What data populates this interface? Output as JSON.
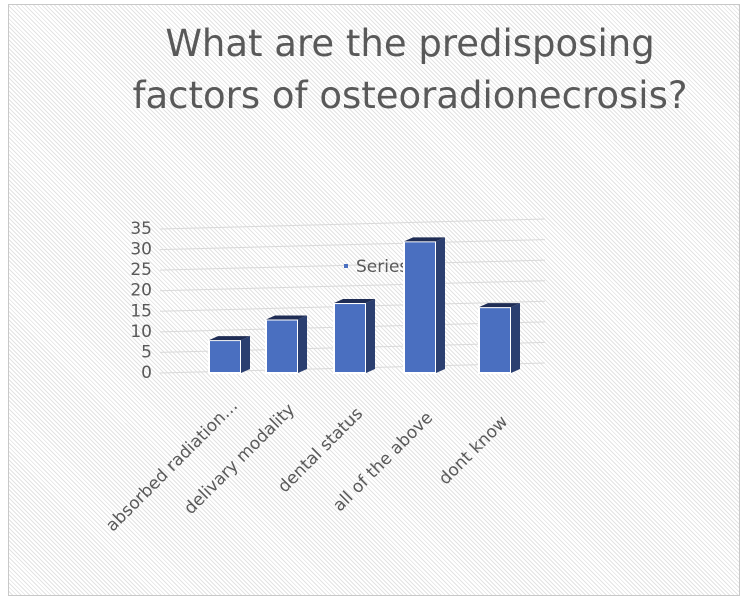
{
  "chart_data": {
    "type": "bar3d",
    "title": "What are the predisposing factors of osteoradionecrosis?",
    "categories": [
      "absorbed radiation…",
      "delivary modality",
      "dental status",
      "all of the above",
      "dont know"
    ],
    "series": [
      {
        "name": "Series1",
        "color": "#4a6fc0",
        "values": [
          8,
          13,
          17,
          32,
          16
        ]
      }
    ],
    "ylim": [
      0,
      35
    ],
    "yticks": [
      0,
      5,
      10,
      15,
      20,
      25,
      30,
      35
    ],
    "grid": true,
    "legend": "top"
  }
}
